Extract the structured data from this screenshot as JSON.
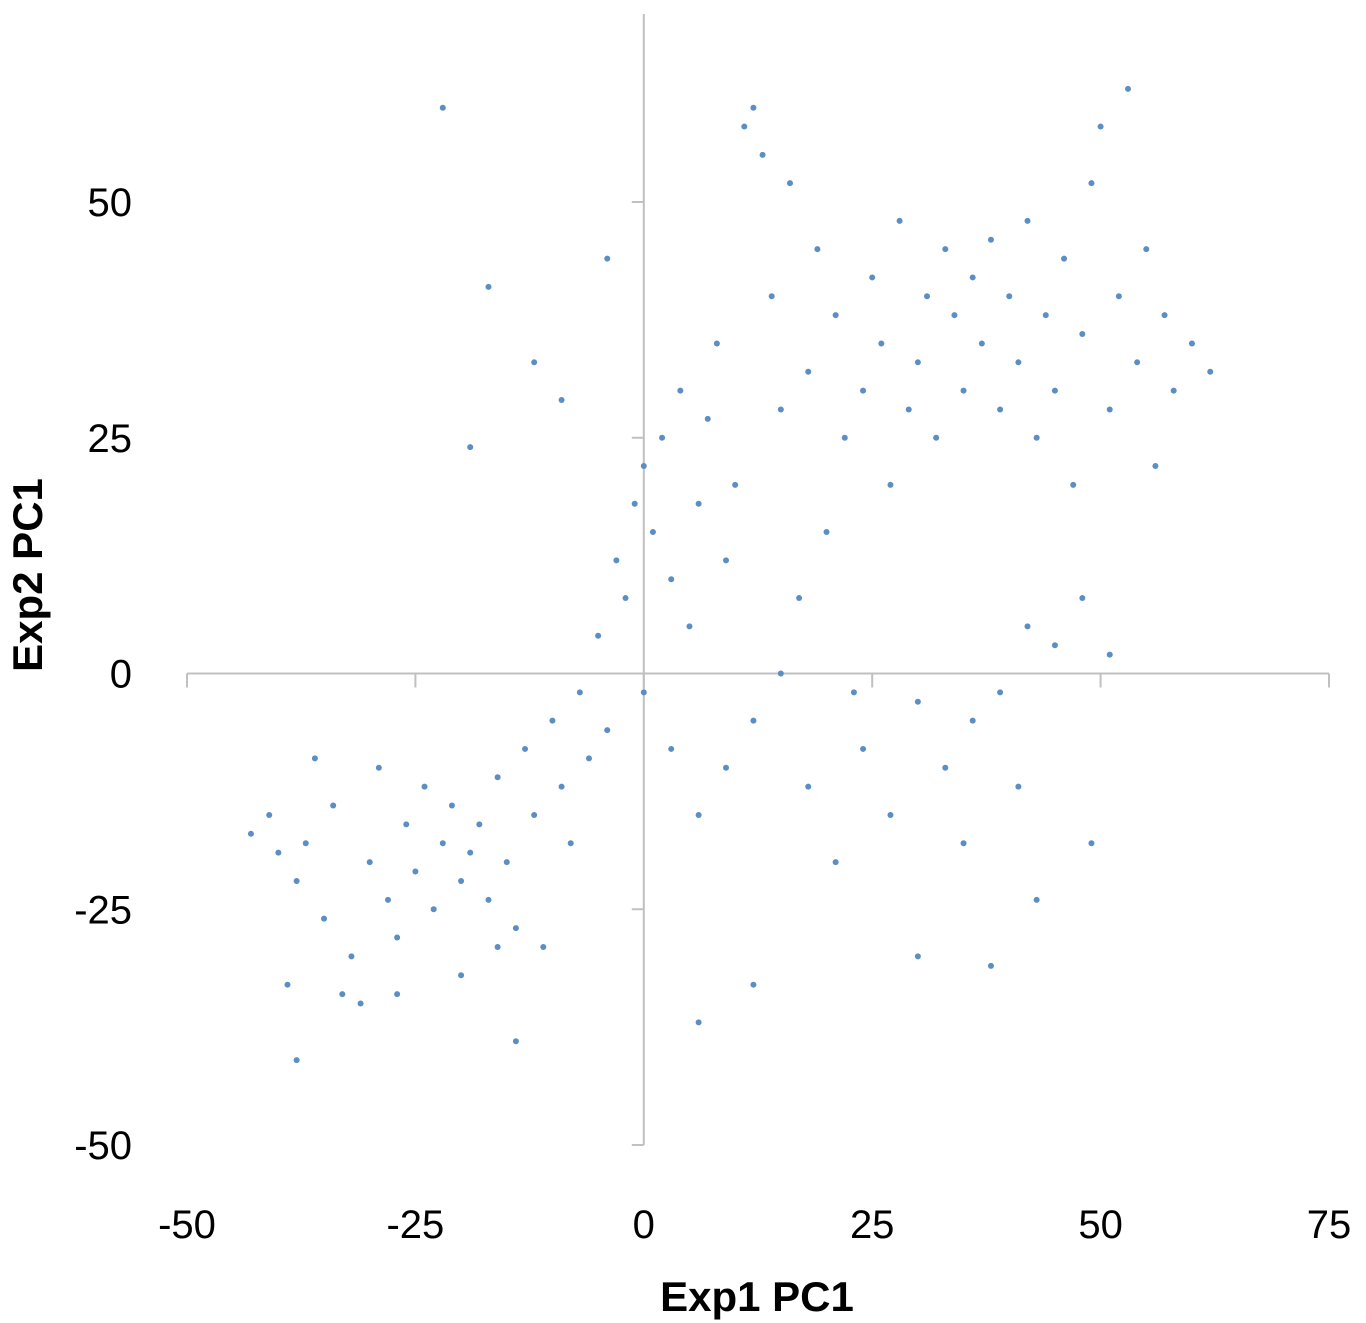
{
  "chart_data": {
    "type": "scatter",
    "title": "",
    "xlabel": "Exp1 PC1",
    "ylabel": "Exp2 PC1",
    "xlim": [
      -50,
      75
    ],
    "ylim": [
      -50,
      50
    ],
    "x_ticks": [
      "-50",
      "-25",
      "0",
      "25",
      "50",
      "75"
    ],
    "y_ticks": [
      "50",
      "25",
      "0",
      "-25",
      "-50"
    ],
    "grid": false,
    "legend": "none",
    "marker_color": "#5b8ec4",
    "axis_color": "#c0c0c0",
    "series": [
      {
        "points": [
          [
            -43,
            -17
          ],
          [
            -41,
            -15
          ],
          [
            -40,
            -19
          ],
          [
            -38,
            -22
          ],
          [
            -37,
            -18
          ],
          [
            -39,
            -33
          ],
          [
            -38,
            -41
          ],
          [
            -35,
            -26
          ],
          [
            -34,
            -14
          ],
          [
            -32,
            -30
          ],
          [
            -30,
            -20
          ],
          [
            -29,
            -10
          ],
          [
            -28,
            -24
          ],
          [
            -27,
            -28
          ],
          [
            -26,
            -16
          ],
          [
            -25,
            -21
          ],
          [
            -24,
            -12
          ],
          [
            -23,
            -25
          ],
          [
            -22,
            -18
          ],
          [
            -21,
            -14
          ],
          [
            -20,
            -22
          ],
          [
            -19,
            -19
          ],
          [
            -18,
            -16
          ],
          [
            -17,
            -24
          ],
          [
            -16,
            -11
          ],
          [
            -15,
            -20
          ],
          [
            -14,
            -27
          ],
          [
            -13,
            -8
          ],
          [
            -12,
            -15
          ],
          [
            -11,
            -29
          ],
          [
            -10,
            -5
          ],
          [
            -9,
            -12
          ],
          [
            -8,
            -18
          ],
          [
            -7,
            -2
          ],
          [
            -6,
            -9
          ],
          [
            -5,
            4
          ],
          [
            -4,
            -6
          ],
          [
            -3,
            12
          ],
          [
            -2,
            8
          ],
          [
            -1,
            18
          ],
          [
            0,
            22
          ],
          [
            1,
            15
          ],
          [
            2,
            25
          ],
          [
            3,
            10
          ],
          [
            4,
            30
          ],
          [
            5,
            5
          ],
          [
            6,
            18
          ],
          [
            7,
            27
          ],
          [
            8,
            35
          ],
          [
            9,
            12
          ],
          [
            10,
            20
          ],
          [
            11,
            58
          ],
          [
            12,
            60
          ],
          [
            13,
            55
          ],
          [
            14,
            40
          ],
          [
            15,
            28
          ],
          [
            16,
            52
          ],
          [
            17,
            8
          ],
          [
            18,
            32
          ],
          [
            19,
            45
          ],
          [
            20,
            15
          ],
          [
            21,
            38
          ],
          [
            22,
            25
          ],
          [
            23,
            -2
          ],
          [
            24,
            30
          ],
          [
            25,
            42
          ],
          [
            26,
            35
          ],
          [
            27,
            20
          ],
          [
            28,
            48
          ],
          [
            29,
            28
          ],
          [
            30,
            33
          ],
          [
            31,
            40
          ],
          [
            32,
            25
          ],
          [
            33,
            45
          ],
          [
            34,
            38
          ],
          [
            35,
            30
          ],
          [
            36,
            42
          ],
          [
            37,
            35
          ],
          [
            38,
            46
          ],
          [
            39,
            28
          ],
          [
            40,
            40
          ],
          [
            41,
            33
          ],
          [
            42,
            48
          ],
          [
            43,
            25
          ],
          [
            44,
            38
          ],
          [
            45,
            30
          ],
          [
            46,
            44
          ],
          [
            47,
            20
          ],
          [
            48,
            36
          ],
          [
            49,
            52
          ],
          [
            50,
            58
          ],
          [
            51,
            28
          ],
          [
            52,
            40
          ],
          [
            53,
            62
          ],
          [
            54,
            33
          ],
          [
            55,
            45
          ],
          [
            56,
            22
          ],
          [
            57,
            38
          ],
          [
            58,
            30
          ],
          [
            60,
            35
          ],
          [
            62,
            32
          ],
          [
            30,
            -30
          ],
          [
            38,
            -31
          ],
          [
            43,
            -24
          ],
          [
            49,
            -18
          ],
          [
            6,
            -37
          ],
          [
            -14,
            -39
          ],
          [
            12,
            -33
          ],
          [
            -22,
            60
          ],
          [
            -27,
            -34
          ],
          [
            -33,
            -34
          ],
          [
            -31,
            -35
          ],
          [
            -20,
            -32
          ],
          [
            -16,
            -29
          ],
          [
            -36,
            -9
          ],
          [
            -4,
            44
          ],
          [
            -9,
            29
          ],
          [
            -17,
            41
          ],
          [
            -19,
            24
          ],
          [
            -12,
            33
          ],
          [
            0,
            -2
          ],
          [
            3,
            -8
          ],
          [
            6,
            -15
          ],
          [
            9,
            -10
          ],
          [
            12,
            -5
          ],
          [
            15,
            0
          ],
          [
            18,
            -12
          ],
          [
            21,
            -20
          ],
          [
            24,
            -8
          ],
          [
            27,
            -15
          ],
          [
            30,
            -3
          ],
          [
            33,
            -10
          ],
          [
            36,
            -5
          ],
          [
            39,
            -2
          ],
          [
            42,
            5
          ],
          [
            45,
            3
          ],
          [
            48,
            8
          ],
          [
            51,
            2
          ],
          [
            41,
            -12
          ],
          [
            35,
            -18
          ]
        ]
      }
    ]
  }
}
